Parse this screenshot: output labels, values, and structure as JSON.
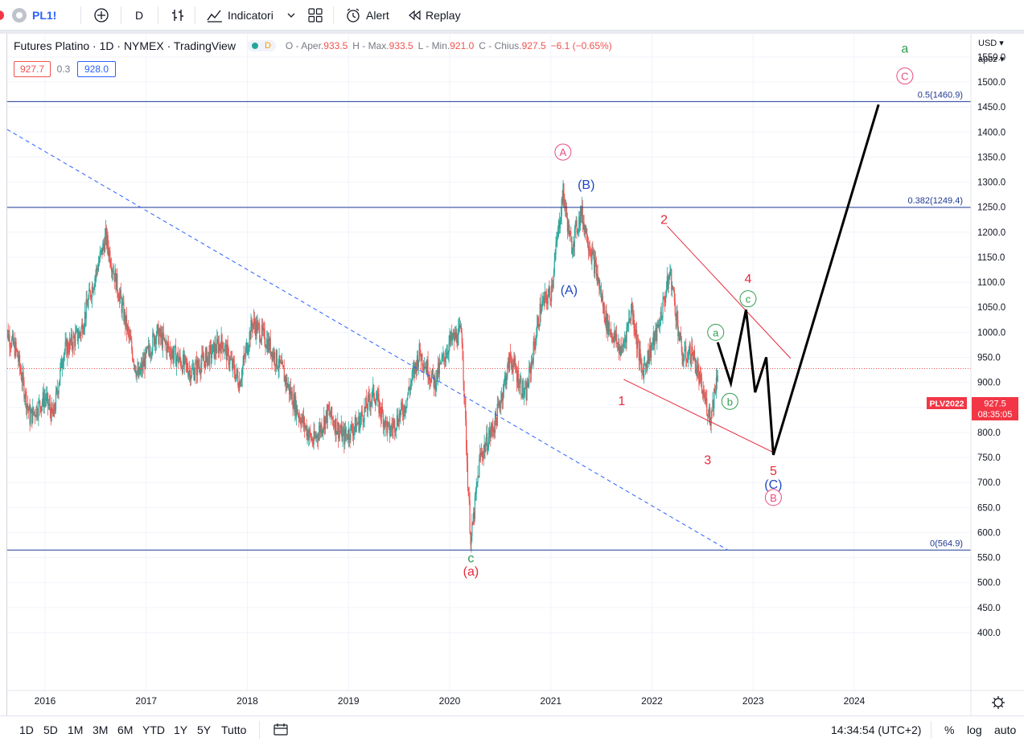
{
  "topbar": {
    "symbol": "PL1!",
    "interval": "D",
    "indicators_label": "Indicatori",
    "alert_label": "Alert",
    "replay_label": "Replay"
  },
  "legend": {
    "title": "Futures Platino · 1D · NYMEX · TradingView",
    "o_label": "O - Aper.",
    "o_value": "933.5",
    "h_label": "H - Max.",
    "h_value": "933.5",
    "l_label": "L - Min.",
    "l_value": "921.0",
    "c_label": "C - Chius.",
    "c_value": "927.5",
    "change": "−6.1 (−0.65%)",
    "bid": "927.7",
    "spread": "0.3",
    "ask": "928.0",
    "d_badge": "D"
  },
  "scale": {
    "currency": "USD",
    "mode": "apoz"
  },
  "price_tag": {
    "symbol": "PLV2022",
    "price": "927.5",
    "countdown": "08:35:05"
  },
  "bottombar": {
    "ranges": [
      "1D",
      "5D",
      "1M",
      "3M",
      "6M",
      "YTD",
      "1Y",
      "5Y",
      "Tutto"
    ],
    "time": "14:34:54 (UTC+2)",
    "pct": "%",
    "log": "log",
    "auto": "auto"
  },
  "colors": {
    "up": "#26a69a",
    "down": "#ef5350",
    "fib": "#1f3a93",
    "trend": "#2962ff",
    "wedge": "#e8293b",
    "projection": "#000000",
    "wave_green": "#2e9e4f",
    "wave_pink": "#e84a7f",
    "wave_blue": "#2147c4"
  },
  "chart_data": {
    "type": "candlestick",
    "title": "Futures Platino · 1D · NYMEX · TradingView",
    "y_ticks": [
      1550,
      1500,
      1450,
      1400,
      1350,
      1300,
      1250,
      1200,
      1150,
      1100,
      1050,
      1000,
      950,
      900,
      850,
      800,
      750,
      700,
      650,
      600,
      550,
      500,
      450,
      400
    ],
    "ylim": [
      365,
      1590
    ],
    "x_ticks": [
      "2016",
      "2017",
      "2018",
      "2019",
      "2020",
      "2021",
      "2022",
      "2023",
      "2024"
    ],
    "last_price": 927.5,
    "price_anchors": [
      {
        "x": 2015.6,
        "y": 1010
      },
      {
        "x": 2015.72,
        "y": 960
      },
      {
        "x": 2015.85,
        "y": 830
      },
      {
        "x": 2016.0,
        "y": 870
      },
      {
        "x": 2016.08,
        "y": 830
      },
      {
        "x": 2016.18,
        "y": 960
      },
      {
        "x": 2016.35,
        "y": 1000
      },
      {
        "x": 2016.45,
        "y": 1080
      },
      {
        "x": 2016.6,
        "y": 1190
      },
      {
        "x": 2016.75,
        "y": 1060
      },
      {
        "x": 2016.92,
        "y": 910
      },
      {
        "x": 2017.1,
        "y": 1000
      },
      {
        "x": 2017.25,
        "y": 960
      },
      {
        "x": 2017.45,
        "y": 920
      },
      {
        "x": 2017.6,
        "y": 950
      },
      {
        "x": 2017.75,
        "y": 980
      },
      {
        "x": 2017.92,
        "y": 900
      },
      {
        "x": 2018.05,
        "y": 1020
      },
      {
        "x": 2018.2,
        "y": 980
      },
      {
        "x": 2018.35,
        "y": 920
      },
      {
        "x": 2018.5,
        "y": 840
      },
      {
        "x": 2018.65,
        "y": 780
      },
      {
        "x": 2018.8,
        "y": 840
      },
      {
        "x": 2018.95,
        "y": 790
      },
      {
        "x": 2019.1,
        "y": 820
      },
      {
        "x": 2019.25,
        "y": 880
      },
      {
        "x": 2019.4,
        "y": 800
      },
      {
        "x": 2019.55,
        "y": 850
      },
      {
        "x": 2019.7,
        "y": 960
      },
      {
        "x": 2019.85,
        "y": 900
      },
      {
        "x": 2020.0,
        "y": 980
      },
      {
        "x": 2020.12,
        "y": 1000
      },
      {
        "x": 2020.18,
        "y": 700
      },
      {
        "x": 2020.21,
        "y": 580
      },
      {
        "x": 2020.3,
        "y": 750
      },
      {
        "x": 2020.45,
        "y": 820
      },
      {
        "x": 2020.6,
        "y": 950
      },
      {
        "x": 2020.75,
        "y": 870
      },
      {
        "x": 2020.9,
        "y": 1050
      },
      {
        "x": 2021.0,
        "y": 1080
      },
      {
        "x": 2021.12,
        "y": 1280
      },
      {
        "x": 2021.2,
        "y": 1170
      },
      {
        "x": 2021.3,
        "y": 1240
      },
      {
        "x": 2021.45,
        "y": 1120
      },
      {
        "x": 2021.55,
        "y": 1020
      },
      {
        "x": 2021.7,
        "y": 960
      },
      {
        "x": 2021.8,
        "y": 1050
      },
      {
        "x": 2021.9,
        "y": 920
      },
      {
        "x": 2022.05,
        "y": 1000
      },
      {
        "x": 2022.18,
        "y": 1120
      },
      {
        "x": 2022.3,
        "y": 950
      },
      {
        "x": 2022.4,
        "y": 960
      },
      {
        "x": 2022.5,
        "y": 880
      },
      {
        "x": 2022.58,
        "y": 830
      },
      {
        "x": 2022.65,
        "y": 925
      }
    ],
    "fib_levels": [
      {
        "label": "0.5(1460.9)",
        "value": 1460.9
      },
      {
        "label": "0.382(1249.4)",
        "value": 1249.4
      },
      {
        "label": "0(564.9)",
        "value": 564.9
      }
    ],
    "trendline": {
      "from": {
        "x": 2015.5,
        "y": 1420
      },
      "to": {
        "x": 2022.75,
        "y": 565
      }
    },
    "wedge_upper": {
      "from": {
        "x": 2022.15,
        "y": 1212
      },
      "to": {
        "x": 2023.37,
        "y": 948
      }
    },
    "wedge_lower": {
      "from": {
        "x": 2021.72,
        "y": 906
      },
      "to": {
        "x": 2023.2,
        "y": 760
      }
    },
    "projection": [
      {
        "x": 2022.65,
        "y": 980
      },
      {
        "x": 2022.78,
        "y": 898
      },
      {
        "x": 2022.93,
        "y": 1045
      },
      {
        "x": 2023.02,
        "y": 880
      },
      {
        "x": 2023.13,
        "y": 950
      },
      {
        "x": 2023.2,
        "y": 755
      },
      {
        "x": 2024.24,
        "y": 1455
      }
    ],
    "wave_labels": [
      {
        "text": "A",
        "circled": true,
        "color": "wave_pink",
        "x": 2021.12,
        "y": 1360
      },
      {
        "text": "(B)",
        "circled": false,
        "color": "wave_blue",
        "x": 2021.35,
        "y": 1296
      },
      {
        "text": "(A)",
        "circled": false,
        "color": "wave_blue",
        "x": 2021.18,
        "y": 1086
      },
      {
        "text": "2",
        "circled": false,
        "color": "wave_red",
        "x": 2022.12,
        "y": 1226
      },
      {
        "text": "4",
        "circled": false,
        "color": "wave_red",
        "x": 2022.95,
        "y": 1108
      },
      {
        "text": "1",
        "circled": false,
        "color": "wave_red",
        "x": 2021.7,
        "y": 864
      },
      {
        "text": "3",
        "circled": false,
        "color": "wave_red",
        "x": 2022.55,
        "y": 746
      },
      {
        "text": "5",
        "circled": false,
        "color": "wave_red",
        "x": 2023.2,
        "y": 724
      },
      {
        "text": "(C)",
        "circled": false,
        "color": "wave_blue",
        "x": 2023.2,
        "y": 697
      },
      {
        "text": "B",
        "circled": true,
        "color": "wave_pink",
        "x": 2023.2,
        "y": 670
      },
      {
        "text": "a",
        "circled": true,
        "color": "wave_green",
        "x": 2022.63,
        "y": 1000
      },
      {
        "text": "b",
        "circled": true,
        "color": "wave_green",
        "x": 2022.77,
        "y": 862
      },
      {
        "text": "c",
        "circled": true,
        "color": "wave_green",
        "x": 2022.95,
        "y": 1067
      },
      {
        "text": "c",
        "circled": false,
        "color": "wave_green",
        "x": 2020.21,
        "y": 550
      },
      {
        "text": "(a)",
        "circled": false,
        "color": "wave_red",
        "x": 2020.21,
        "y": 524
      },
      {
        "text": "a",
        "circled": false,
        "color": "wave_green",
        "x": 2024.5,
        "y": 1568
      },
      {
        "text": "C",
        "circled": true,
        "color": "wave_pink",
        "x": 2024.5,
        "y": 1512
      }
    ]
  }
}
